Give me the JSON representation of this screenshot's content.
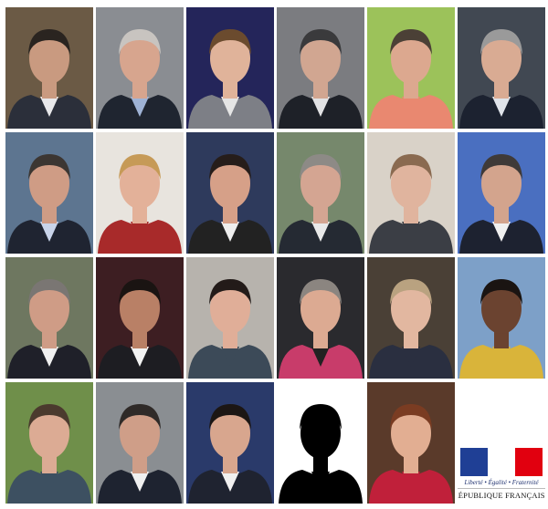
{
  "portraits": [
    {
      "bg": "#6b5a45",
      "skin": "#c99a80",
      "hair": "#2a2420",
      "suit": "#2b2f3a",
      "shirt": "#e8e8ea"
    },
    {
      "bg": "#8a8d92",
      "skin": "#d7a58e",
      "hair": "#c8c4c0",
      "suit": "#1f2530",
      "shirt": "#9fb3d6"
    },
    {
      "bg": "#24255a",
      "skin": "#e0b39a",
      "hair": "#6b4b2e",
      "suit": "#7d7f86",
      "shirt": "#e5e5e5"
    },
    {
      "bg": "#7b7c80",
      "skin": "#d1a691",
      "hair": "#3a3a3c",
      "suit": "#1e2128",
      "shirt": "#e2e2e4"
    },
    {
      "bg": "#9cc25a",
      "skin": "#dca88f",
      "hair": "#4b4036",
      "suit": "#e98870",
      "shirt": "#e98870"
    },
    {
      "bg": "#414852",
      "skin": "#d9ab93",
      "hair": "#9a9a9a",
      "suit": "#1c2230",
      "shirt": "#e0e4ea"
    },
    {
      "bg": "#5d7590",
      "skin": "#cf9c85",
      "hair": "#3c3632",
      "suit": "#1f2431",
      "shirt": "#c9d4ea"
    },
    {
      "bg": "#e8e4de",
      "skin": "#e3b199",
      "hair": "#c69a57",
      "suit": "#a82a2a",
      "shirt": "#a82a2a"
    },
    {
      "bg": "#2e3a5c",
      "skin": "#d6a088",
      "hair": "#261d1a",
      "suit": "#222",
      "shirt": "#eee"
    },
    {
      "bg": "#76886c",
      "skin": "#d4a592",
      "hair": "#8d8a86",
      "suit": "#252a33",
      "shirt": "#e9e9e9"
    },
    {
      "bg": "#d9d2c8",
      "skin": "#e0b49e",
      "hair": "#8a6a50",
      "suit": "#3b3e45",
      "shirt": "#3b3e45"
    },
    {
      "bg": "#4a6fc0",
      "skin": "#d3a48d",
      "hair": "#3f3a38",
      "suit": "#1d2230",
      "shirt": "#f0f0f0"
    },
    {
      "bg": "#6e7760",
      "skin": "#cf9c86",
      "hair": "#7a7673",
      "suit": "#1f2029",
      "shirt": "#f0f0f0"
    },
    {
      "bg": "#3d1e22",
      "skin": "#b98066",
      "hair": "#1a1412",
      "suit": "#1d1d22",
      "shirt": "#f2f2f2"
    },
    {
      "bg": "#b7b3ad",
      "skin": "#e0ae98",
      "hair": "#231b19",
      "suit": "#3c4a58",
      "shirt": "#3c4a58"
    },
    {
      "bg": "#2a2a2e",
      "skin": "#dcaa92",
      "hair": "#8b8580",
      "suit": "#c83c6a",
      "shirt": "#222"
    },
    {
      "bg": "#4a4036",
      "skin": "#e2b7a0",
      "hair": "#b9a280",
      "suit": "#2a2f40",
      "shirt": "#2a2f40"
    },
    {
      "bg": "#7da0c8",
      "skin": "#6b4330",
      "hair": "#1a1412",
      "suit": "#d9b43a",
      "shirt": "#d9b43a"
    },
    {
      "bg": "#6f8f4a",
      "skin": "#dcab94",
      "hair": "#4b3a2e",
      "suit": "#3d5061",
      "shirt": "#3d5061"
    },
    {
      "bg": "#8a8e92",
      "skin": "#cf9e88",
      "hair": "#2f2a28",
      "suit": "#1e2330",
      "shirt": "#f0f0f0"
    },
    {
      "bg": "#2a3a6a",
      "skin": "#d8a68e",
      "hair": "#1c1614",
      "suit": "#1f2330",
      "shirt": "#f0f0f0"
    },
    {
      "bg": "#ffffff",
      "skin": "#000000",
      "hair": "#000000",
      "suit": "#000000",
      "shirt": "#000000"
    },
    {
      "bg": "#5a3a2a",
      "skin": "#e2ae92",
      "hair": "#7a3c22",
      "suit": "#c0203a",
      "shirt": "#c0203a"
    }
  ],
  "logo": {
    "colors": {
      "blue": "#1f3f95",
      "white": "#ffffff",
      "red": "#e1000f"
    },
    "motto": "Liberté • Égalité • Fraternité",
    "name": "RÉPUBLIQUE FRANÇAISE"
  }
}
